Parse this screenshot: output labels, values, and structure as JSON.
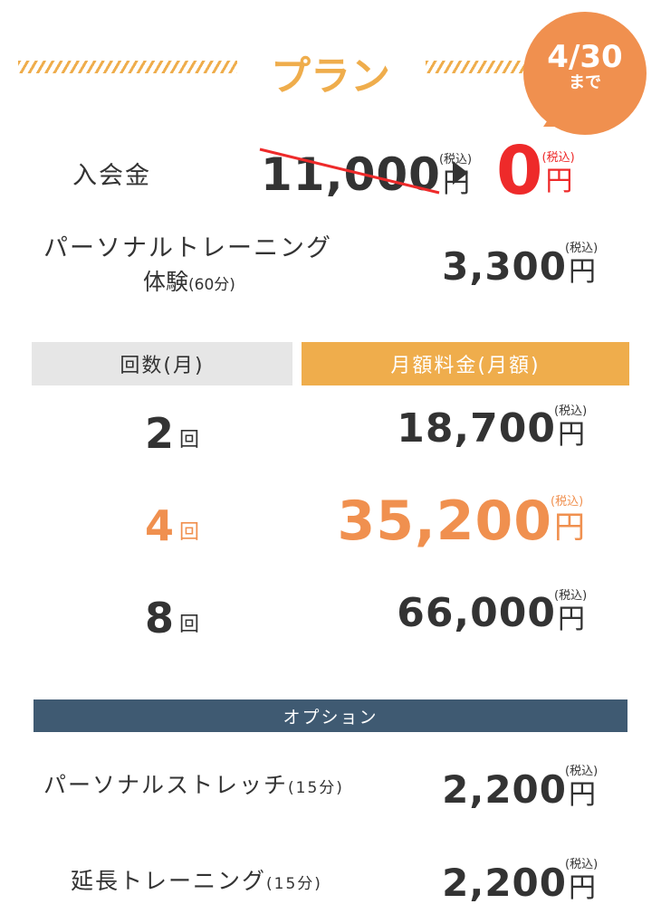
{
  "header": {
    "title": "プラン",
    "badge_date": "4/30",
    "badge_suffix": "まで"
  },
  "colors": {
    "accent": "#efad4c",
    "badge": "#f0904f",
    "sale": "#ee2a2a",
    "option_bar": "#3f5a72",
    "count_header": "#e6e6e6"
  },
  "tax_label": "(税込)",
  "yen": "円",
  "admission": {
    "label": "入会金",
    "original_price": "11,000",
    "sale_price": "0",
    "arrow_icon": "triangle-right"
  },
  "trial": {
    "label_line1": "パーソナルトレーニング",
    "label_line2": "体験",
    "label_paren": "(60分)",
    "price": "3,300"
  },
  "plans": {
    "col_count": "回数(月)",
    "col_price": "月額料金(月額)",
    "unit": "回",
    "rows": [
      {
        "count": "2",
        "price": "18,700",
        "highlight": false
      },
      {
        "count": "4",
        "price": "35,200",
        "highlight": true
      },
      {
        "count": "8",
        "price": "66,000",
        "highlight": false
      }
    ]
  },
  "options": {
    "title": "オプション",
    "items": [
      {
        "label": "パーソナルストレッチ",
        "paren": "(15分)",
        "price": "2,200"
      },
      {
        "label": "延長トレーニング",
        "paren": "(15分)",
        "price": "2,200"
      }
    ]
  }
}
